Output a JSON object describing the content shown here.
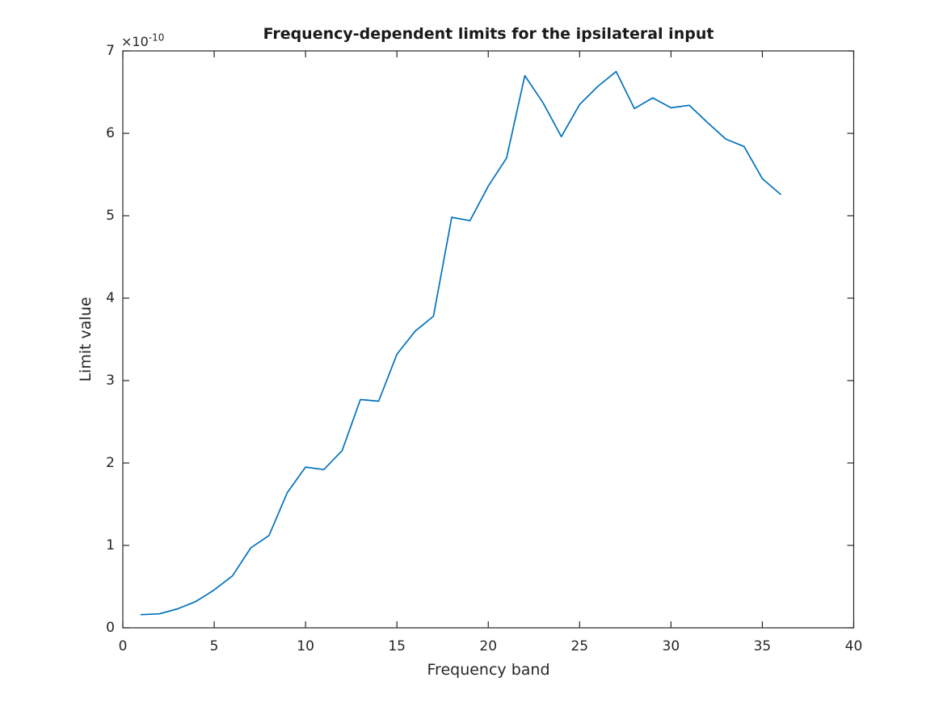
{
  "y_axis": {
    "multiplier_base": "×10",
    "multiplier_exp": "-10"
  },
  "chart_data": {
    "type": "line",
    "title": "Frequency-dependent limits for the ipsilateral input",
    "xlabel": "Frequency band",
    "ylabel": "Limit value",
    "y_axis_multiplier": "×10⁻¹⁰",
    "xlim": [
      0,
      40
    ],
    "ylim_e10": [
      0,
      7
    ],
    "x_ticks": [
      0,
      5,
      10,
      15,
      20,
      25,
      30,
      35,
      40
    ],
    "y_ticks_e10": [
      0,
      1,
      2,
      3,
      4,
      5,
      6,
      7
    ],
    "grid": false,
    "legend": null,
    "box": true,
    "axis_color": "#262626",
    "series": [
      {
        "name": "limit",
        "color": "#0072BD",
        "x": [
          1,
          2,
          3,
          4,
          5,
          6,
          7,
          8,
          9,
          10,
          11,
          12,
          13,
          14,
          15,
          16,
          17,
          18,
          19,
          20,
          21,
          22,
          23,
          24,
          25,
          26,
          27,
          28,
          29,
          30,
          31,
          32,
          33,
          34,
          35,
          36
        ],
        "y_e10": [
          0.16,
          0.17,
          0.23,
          0.32,
          0.46,
          0.63,
          0.97,
          1.12,
          1.64,
          1.95,
          1.92,
          2.15,
          2.77,
          2.75,
          3.32,
          3.6,
          3.78,
          4.98,
          4.94,
          5.36,
          5.7,
          6.7,
          6.37,
          5.96,
          6.35,
          6.57,
          6.75,
          6.3,
          6.43,
          6.31,
          6.34,
          6.13,
          5.93,
          5.84,
          5.45,
          5.26
        ]
      }
    ]
  }
}
